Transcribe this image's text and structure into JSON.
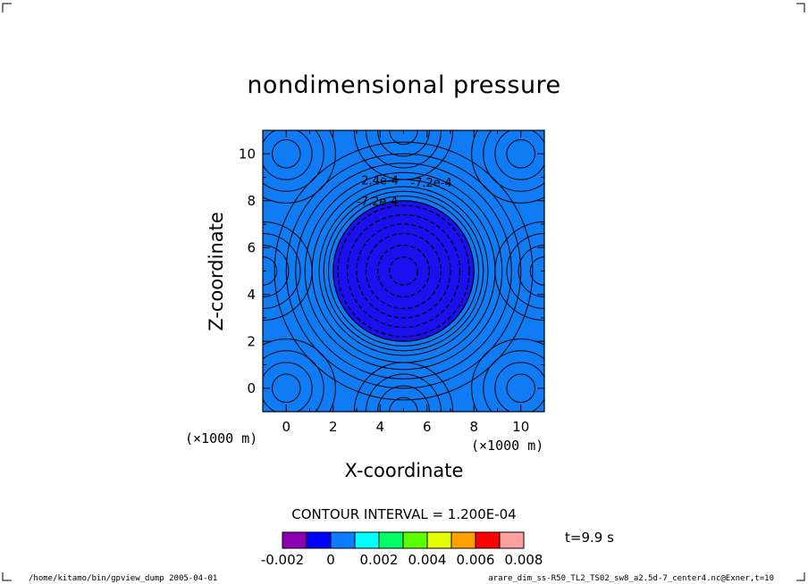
{
  "chart_data": {
    "type": "contour",
    "title": "nondimensional pressure",
    "xlabel": "X-coordinate",
    "ylabel": "Z-coordinate",
    "x_unit": "(×1000 m)",
    "y_unit": "(×1000 m)",
    "xlim": [
      -1,
      11
    ],
    "ylim": [
      -1,
      11
    ],
    "xticks": [
      0,
      2,
      4,
      6,
      8,
      10
    ],
    "yticks": [
      0,
      2,
      4,
      6,
      8,
      10
    ],
    "contour_interval_text": "CONTOUR INTERVAL = 1.200E-04",
    "time_text": "t=9.9 s",
    "contour_labels": [
      "2.4e-4",
      "-7.2e-4",
      "-7.2e-4"
    ],
    "colorbar": {
      "tick_labels": [
        "-0.002",
        "0",
        "0.002",
        "0.004",
        "0.006",
        "0.008"
      ],
      "colors": [
        "#8a00b0",
        "#0000ff",
        "#0a7cff",
        "#00ffff",
        "#00ff66",
        "#5aff00",
        "#e6ff00",
        "#ffa000",
        "#ff0000",
        "#ffa0a0"
      ]
    },
    "field": {
      "background_color": "#0f7bf5",
      "low_color": "#1a10f0",
      "center_x": 5,
      "center_z": 5,
      "low_radius": 3.0,
      "outer_ring_radii": [
        3.2,
        3.4,
        3.6,
        3.9,
        4.2,
        4.6,
        5.0,
        5.5
      ],
      "inner_dashed_radii": [
        0.6,
        1.1,
        1.6,
        2.0,
        2.4,
        2.8
      ],
      "corner_ring_radii": [
        0.6,
        1.1,
        1.6,
        2.1
      ],
      "corner_centers": [
        [
          0,
          0
        ],
        [
          10,
          0
        ],
        [
          0,
          10
        ],
        [
          10,
          10
        ],
        [
          -1,
          5
        ],
        [
          11,
          5
        ],
        [
          5,
          -1
        ],
        [
          5,
          11
        ]
      ]
    }
  },
  "footer": {
    "left": "/home/kitamo/bin/gpview_dump  2005-04-01",
    "right": "arare_dim_ss-R50_TL2_TS02_sw8_a2.5d-7_center4.nc@Exner,t=10"
  }
}
